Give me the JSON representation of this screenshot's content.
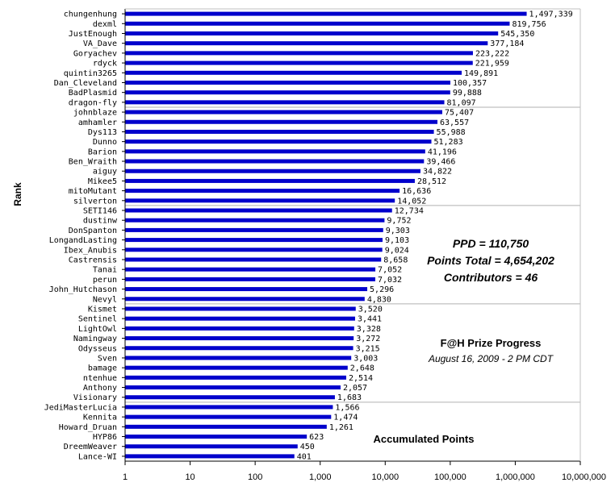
{
  "chart_data": {
    "type": "bar",
    "orientation": "horizontal",
    "x_scale": "log",
    "xlim": [
      1,
      10000000
    ],
    "x_ticks": [
      "1",
      "10",
      "100",
      "1,000",
      "10,000",
      "100,000",
      "1,000,000",
      "10,000,000"
    ],
    "ylabel": "Rank",
    "xlabel": "Accumulated Points",
    "bar_color": "#0000cc",
    "grid": "horizontal gridlines every 10 categories",
    "categories": [
      "chungenhung",
      "dexml",
      "JustEnough",
      "VA_Dave",
      "Goryachev",
      "rdyck",
      "quintin3265",
      "Dan_Cleveland",
      "BadPlasmid",
      "dragon-fly",
      "johnblaze",
      "amhamler",
      "Dys113",
      "Dunno",
      "Barion",
      "Ben_Wraith",
      "aiguy",
      "Mikee5",
      "mitoMutant",
      "silverton",
      "SETI146",
      "dustinw",
      "DonSpanton",
      "LongandLasting",
      "Ibex_Anubis",
      "Castrensis",
      "Tanai",
      "perun",
      "John_Hutchason",
      "Nevyl",
      "Kismet",
      "Sentinel",
      "LightOwl",
      "Namingway",
      "Odysseus",
      "Sven",
      "bamage",
      "ntenhue",
      "Anthony",
      "Visionary",
      "JediMasterLucia",
      "Kennita",
      "Howard_Druan",
      "HYP86",
      "DreemWeaver",
      "Lance-WI"
    ],
    "values": [
      1497339,
      819756,
      545350,
      377184,
      223222,
      221959,
      149891,
      100357,
      99888,
      81097,
      75407,
      63557,
      55988,
      51283,
      41196,
      39466,
      34822,
      28512,
      16636,
      14052,
      12734,
      9752,
      9303,
      9103,
      9024,
      8658,
      7052,
      7032,
      5296,
      4830,
      3520,
      3441,
      3328,
      3272,
      3215,
      3003,
      2648,
      2514,
      2057,
      1683,
      1566,
      1474,
      1261,
      623,
      450,
      401
    ],
    "value_labels": [
      "1,497,339",
      "819,756",
      "545,350",
      "377,184",
      "223,222",
      "221,959",
      "149,891",
      "100,357",
      "99,888",
      "81,097",
      "75,407",
      "63,557",
      "55,988",
      "51,283",
      "41,196",
      "39,466",
      "34,822",
      "28,512",
      "16,636",
      "14,052",
      "12,734",
      "9,752",
      "9,303",
      "9,103",
      "9,024",
      "8,658",
      "7,052",
      "7,032",
      "5,296",
      "4,830",
      "3,520",
      "3,441",
      "3,328",
      "3,272",
      "3,215",
      "3,003",
      "2,648",
      "2,514",
      "2,057",
      "1,683",
      "1,566",
      "1,474",
      "1,261",
      "623",
      "450",
      "401"
    ],
    "annotations": {
      "ppd": "PPD = 110,750",
      "points_total": "Points Total = 4,654,202",
      "contributors": "Contributors = 46",
      "title": "F@H Prize Progress",
      "subtitle": "August 16, 2009 - 2 PM CDT"
    }
  }
}
